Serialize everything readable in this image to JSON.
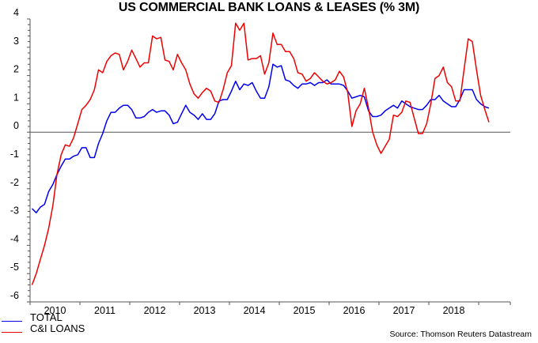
{
  "title": "US COMMERCIAL BANK LOANS & LEASES (% 3M)",
  "source": "Source: Thomson Reuters Datastream",
  "colors": {
    "total": "#0000ee",
    "ci_loans": "#ee0000",
    "axis": "#555555"
  },
  "chart_data": {
    "type": "line",
    "title": "US COMMERCIAL BANK LOANS & LEASES (% 3M)",
    "xlabel": "",
    "ylabel": "",
    "ylim": [
      -6,
      4
    ],
    "yticks": [
      4,
      3,
      2,
      1,
      0,
      -1,
      -2,
      -3,
      -4,
      -5,
      -6
    ],
    "xtick_labels": [
      "2010",
      "2011",
      "2012",
      "2013",
      "2014",
      "2015",
      "2016",
      "2017",
      "2018"
    ],
    "x_start": "2010-01",
    "frequency": "monthly",
    "grid": false,
    "zero_line": true,
    "legend_position": "bottom-left",
    "series": [
      {
        "name": "TOTAL",
        "color": "#0000ee",
        "values": [
          -2.7,
          -2.85,
          -2.65,
          -2.55,
          -2.1,
          -1.85,
          -1.5,
          -1.2,
          -0.95,
          -0.95,
          -0.85,
          -0.8,
          -0.55,
          -0.55,
          -0.9,
          -0.9,
          -0.4,
          -0.05,
          0.4,
          0.7,
          0.7,
          0.85,
          0.95,
          0.95,
          0.8,
          0.5,
          0.5,
          0.55,
          0.7,
          0.8,
          0.7,
          0.75,
          0.75,
          0.6,
          0.3,
          0.35,
          0.65,
          0.95,
          0.7,
          0.6,
          0.45,
          0.65,
          0.45,
          0.45,
          0.65,
          1.1,
          1.15,
          1.15,
          1.45,
          1.8,
          1.5,
          1.7,
          1.65,
          1.75,
          1.45,
          1.2,
          1.2,
          1.6,
          2.4,
          2.3,
          2.35,
          1.85,
          1.8,
          1.65,
          1.55,
          1.7,
          1.7,
          1.75,
          1.65,
          1.75,
          1.75,
          1.85,
          1.7,
          1.7,
          1.7,
          1.65,
          1.45,
          1.2,
          1.25,
          1.3,
          1.25,
          0.75,
          0.55,
          0.55,
          0.6,
          0.75,
          0.85,
          0.95,
          0.85,
          1.1,
          1.0,
          0.9,
          0.85,
          0.8,
          0.8,
          0.95,
          1.15,
          1.15,
          1.3,
          1.1,
          1.0,
          0.9,
          0.9,
          1.15,
          1.5,
          1.5,
          1.5,
          1.15,
          1.0,
          0.9,
          0.85
        ]
      },
      {
        "name": "C&I LOANS",
        "color": "#ee0000",
        "values": [
          -5.4,
          -5.0,
          -4.5,
          -4.0,
          -3.4,
          -2.6,
          -1.5,
          -0.8,
          -0.45,
          -0.5,
          -0.2,
          0.3,
          0.8,
          0.95,
          1.15,
          1.5,
          2.2,
          2.1,
          2.5,
          2.7,
          2.8,
          2.75,
          2.2,
          2.5,
          2.9,
          2.6,
          2.3,
          2.45,
          2.45,
          3.4,
          3.3,
          3.35,
          2.55,
          2.5,
          2.2,
          2.75,
          2.45,
          2.2,
          1.7,
          1.35,
          1.2,
          1.4,
          1.55,
          1.45,
          1.1,
          1.05,
          1.5,
          2.1,
          2.35,
          3.85,
          3.6,
          3.85,
          2.55,
          2.6,
          2.6,
          2.7,
          2.05,
          2.45,
          3.5,
          3.1,
          3.1,
          2.85,
          2.85,
          2.6,
          2.1,
          2.05,
          1.8,
          1.9,
          2.1,
          1.95,
          1.8,
          1.7,
          1.75,
          1.85,
          2.15,
          1.95,
          1.4,
          0.2,
          0.75,
          1.0,
          1.55,
          0.85,
          0.0,
          -0.45,
          -0.75,
          -0.5,
          -0.25,
          0.6,
          0.55,
          0.7,
          1.1,
          1.05,
          0.5,
          -0.05,
          -0.05,
          0.3,
          1.0,
          1.9,
          2.0,
          2.3,
          1.75,
          1.6,
          1.1,
          1.1,
          2.2,
          3.3,
          3.2,
          2.2,
          1.3,
          0.8,
          0.35
        ]
      }
    ]
  },
  "legend": [
    {
      "label": "TOTAL",
      "color": "#0000ee"
    },
    {
      "label": "C&I LOANS",
      "color": "#ee0000"
    }
  ]
}
